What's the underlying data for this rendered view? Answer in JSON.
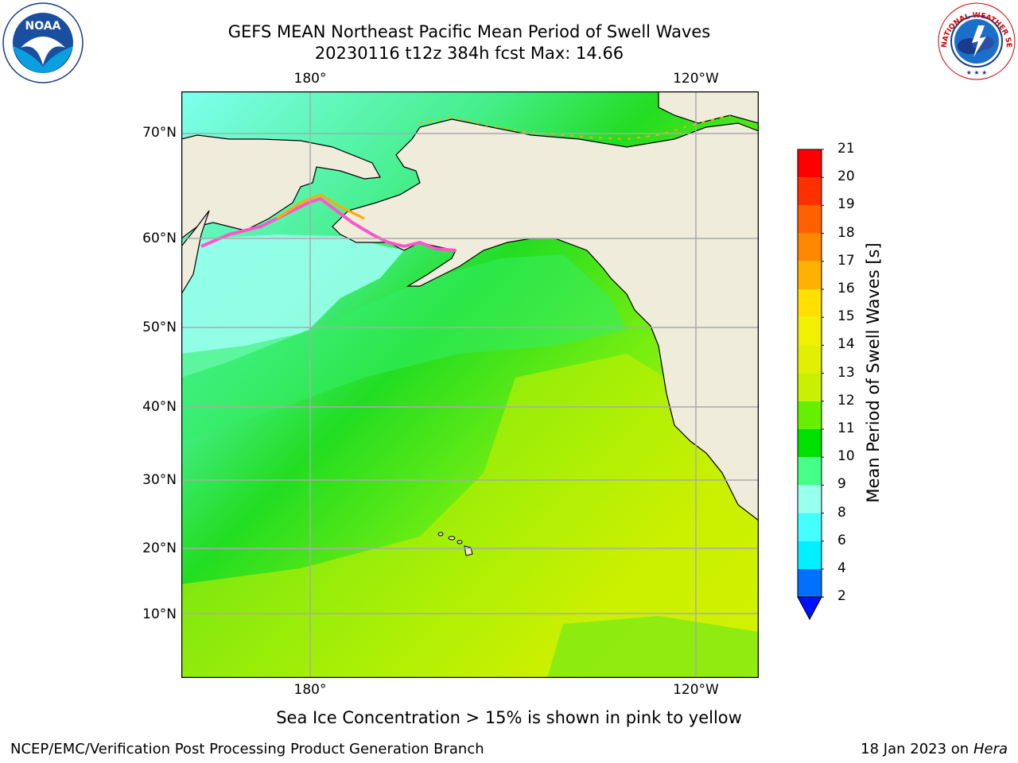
{
  "header": {
    "title_line1": "GEFS MEAN Northeast Pacific Mean Period of Swell Waves",
    "title_line2": "20230116 t12z 384h fcst   Max: 14.66"
  },
  "map": {
    "lat_labels": [
      "70°N",
      "60°N",
      "50°N",
      "40°N",
      "30°N",
      "20°N",
      "10°N"
    ],
    "lon_labels": [
      "180°",
      "120°W"
    ],
    "colors": {
      "land": "#efecdc",
      "grid": "#aaaaaa",
      "coast": "#000000",
      "ice_pink": "#ff55cc",
      "ice_orange": "#ffaa00"
    }
  },
  "colorbar": {
    "label": "Mean Period of Swell Waves [s]",
    "ticks": [
      "21",
      "20",
      "19",
      "18",
      "17",
      "16",
      "15",
      "14",
      "13",
      "12",
      "11",
      "10",
      "9",
      "8",
      "6",
      "4",
      "2"
    ],
    "colors_top_to_bottom": [
      "#ff0000",
      "#ff3000",
      "#ff6000",
      "#ff8800",
      "#ffb000",
      "#ffe000",
      "#f0f000",
      "#e0f000",
      "#c8f000",
      "#66f000",
      "#00e000",
      "#44ff88",
      "#99ffee",
      "#44ffff",
      "#00f0ff",
      "#0070ff"
    ],
    "extend_color": "#0010ff"
  },
  "footer": {
    "note": "Sea Ice Concentration > 15% is shown in pink to yellow",
    "credit": "NCEP/EMC/Verification Post Processing Product Generation Branch",
    "date": "18 Jan 2023 on ",
    "machine": "Hera"
  },
  "logos": {
    "left_text": "NOAA",
    "right_text": "NATIONAL WEATHER SERVICE"
  }
}
